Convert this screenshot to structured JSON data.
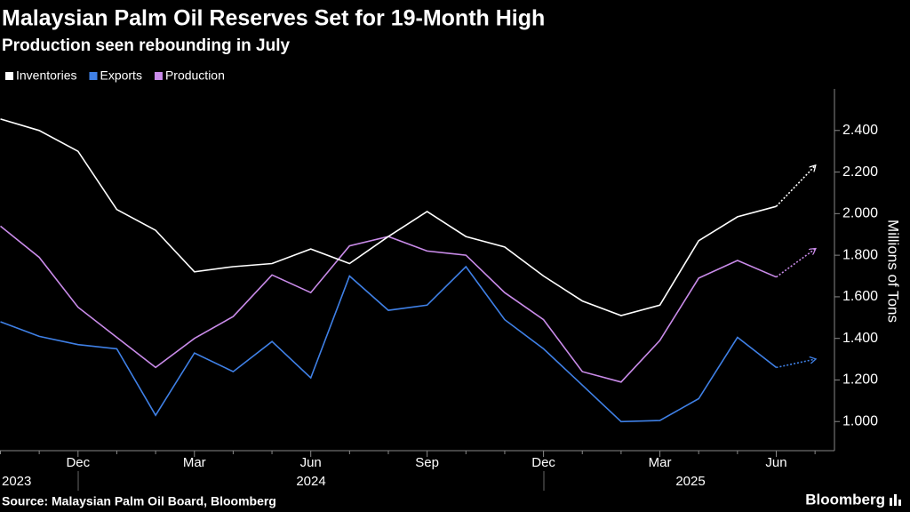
{
  "chart_data": {
    "type": "line",
    "title": "Malaysian Palm Oil Reserves Set for 19-Month High",
    "subtitle": "Production seen rebounding in July",
    "y_label": "Millions of Tons",
    "source": "Source: Malaysian Palm Oil Board, Bloomberg",
    "brand": "Bloomberg",
    "categories": [
      null,
      null,
      "Dec",
      null,
      null,
      "Mar",
      null,
      null,
      "Jun",
      null,
      null,
      "Sep",
      null,
      null,
      "Dec",
      null,
      null,
      "Mar",
      null,
      null,
      "Jun",
      null
    ],
    "years": [
      "2023",
      "2024",
      "2025"
    ],
    "series": [
      {
        "name": "Inventories",
        "color": "#ffffff",
        "values": [
          2.455,
          2.4,
          2.3,
          2.02,
          1.92,
          1.72,
          1.745,
          1.76,
          1.83,
          1.76,
          1.89,
          2.01,
          1.89,
          1.84,
          1.7,
          1.58,
          1.51,
          1.56,
          1.87,
          1.985,
          2.035,
          null
        ],
        "forecast": 2.23
      },
      {
        "name": "Exports",
        "color": "#3f80e6",
        "values": [
          1.48,
          1.41,
          1.37,
          1.35,
          1.03,
          1.33,
          1.24,
          1.385,
          1.21,
          1.7,
          1.535,
          1.56,
          1.745,
          1.49,
          1.35,
          1.175,
          1.0,
          1.005,
          1.11,
          1.405,
          1.26,
          null
        ],
        "forecast": 1.3
      },
      {
        "name": "Production",
        "color": "#c98be9",
        "values": [
          1.94,
          1.79,
          1.55,
          1.405,
          1.26,
          1.4,
          1.505,
          1.705,
          1.62,
          1.845,
          1.89,
          1.82,
          1.8,
          1.62,
          1.49,
          1.24,
          1.19,
          1.39,
          1.69,
          1.775,
          1.695,
          null
        ],
        "forecast": 1.83
      }
    ],
    "ylim": [
      0.86,
      2.6
    ],
    "yticks": [
      {
        "value": 1.0,
        "label": "1.000"
      },
      {
        "value": 1.2,
        "label": "1.200"
      },
      {
        "value": 1.4,
        "label": "1.400"
      },
      {
        "value": 1.6,
        "label": "1.600"
      },
      {
        "value": 1.8,
        "label": "1.800"
      },
      {
        "value": 2.0,
        "label": "2.000"
      },
      {
        "value": 2.2,
        "label": "2.200"
      },
      {
        "value": 2.4,
        "label": "2.400"
      }
    ],
    "grid": false
  }
}
